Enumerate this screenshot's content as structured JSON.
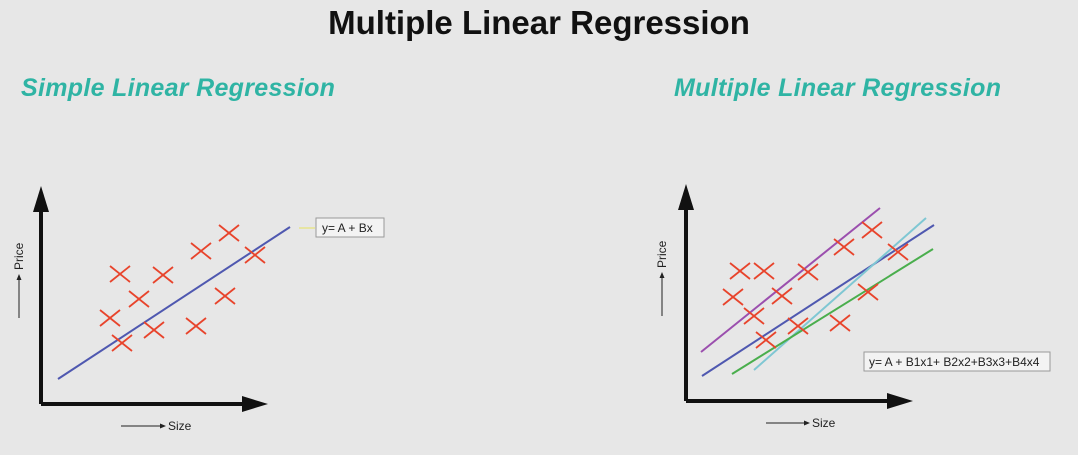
{
  "title": "Multiple Linear Regression",
  "left_panel": {
    "heading": "Simple Linear Regression",
    "y_axis_label": "Price",
    "x_axis_label": "Size",
    "equation": "y= A + Bx"
  },
  "right_panel": {
    "heading": "Multiple Linear Regression",
    "y_axis_label": "Price",
    "x_axis_label": "Size",
    "equation": "y= A + B1x1+ B2x2+B3x3+B4x4"
  },
  "colors": {
    "heading": "#2fb4a4",
    "points": "#e8442c",
    "axis": "#111111",
    "line_blue": "#4f58b0",
    "line_purple": "#9b4fae",
    "line_cyan": "#7fc7d3",
    "line_green": "#4aae4d"
  }
}
